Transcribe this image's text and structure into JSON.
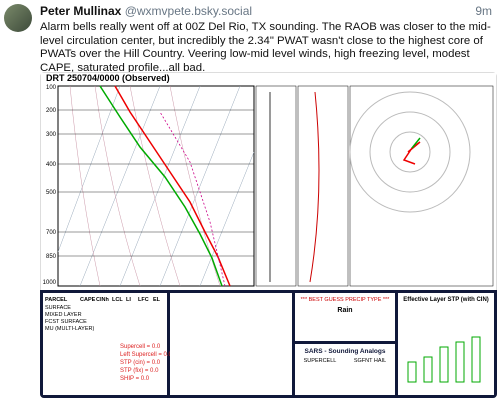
{
  "post": {
    "author": "Peter Mullinax",
    "handle": "@wxmvpete.bsky.social",
    "time": "9m",
    "text": "Alarm bells really went off at 00Z Del Rio, TX sounding. The RAOB was closer to the mid-level circulation center, but incredibly the 2.34\" PWAT wasn't close to the highest core of PWATs over the Hill Country. Veering low-mid level winds, high freezing level, modest CAPE, saturated profile...all bad."
  },
  "image": {
    "title": "DRT 250704/0000 (Observed)",
    "pressure_labels": [
      "100",
      "200",
      "300",
      "400",
      "500",
      "700",
      "850",
      "1000"
    ],
    "parcel_headers": [
      "PARCEL",
      "CAPE",
      "CINh",
      "LCL",
      "LI",
      "LFC",
      "EL"
    ],
    "parcel_rows": [
      "SURFACE",
      "MIXED LAYER",
      "FCST SURFACE",
      "MU (MULTI-LAYER)"
    ],
    "composites": [
      "Supercell = 0.0",
      "Left Supercell = 0.0",
      "STP (cin) = 0.0",
      "STP (fix) = 0.0",
      "SHIP = 0.0"
    ],
    "precip_title": "*** BEST GUESS PRECIP TYPE ***",
    "precip_type": "Rain",
    "sars_title": "SARS - Sounding Analogs",
    "sars_cols": [
      "SUPERCELL",
      "SGFNT HAIL"
    ],
    "stp_title": "Effective Layer STP (with CIN)"
  }
}
